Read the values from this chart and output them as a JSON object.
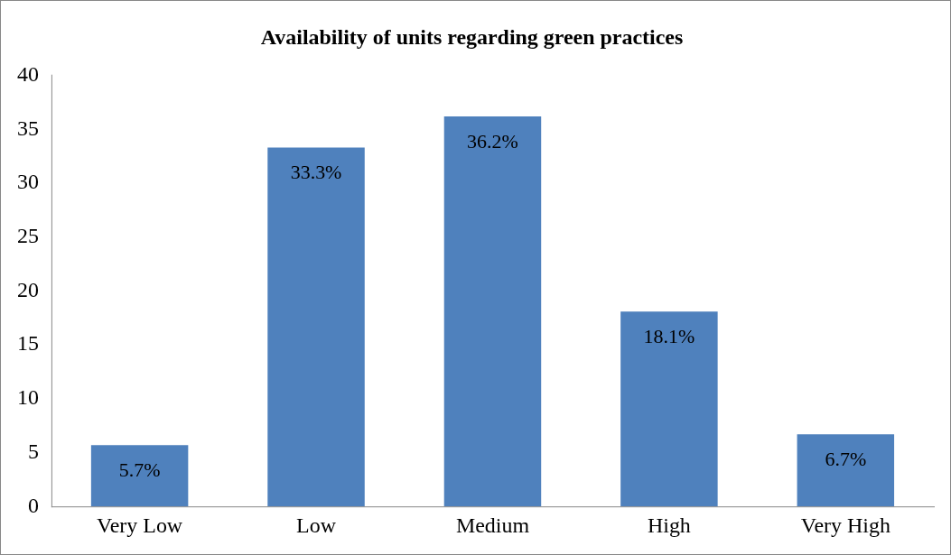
{
  "chart_data": {
    "type": "bar",
    "title": "Availability of units regarding green practices",
    "categories": [
      "Very Low",
      "Low",
      "Medium",
      "High",
      "Very High"
    ],
    "values": [
      5.7,
      33.3,
      36.2,
      18.1,
      6.7
    ],
    "value_labels": [
      "5.7%",
      "33.3%",
      "36.2%",
      "18.1%",
      "6.7%"
    ],
    "color": "#4f81bd",
    "ylim": [
      0,
      40
    ],
    "yticks": [
      0,
      5,
      10,
      15,
      20,
      25,
      30,
      35,
      40
    ],
    "grid": false,
    "legend": false
  }
}
